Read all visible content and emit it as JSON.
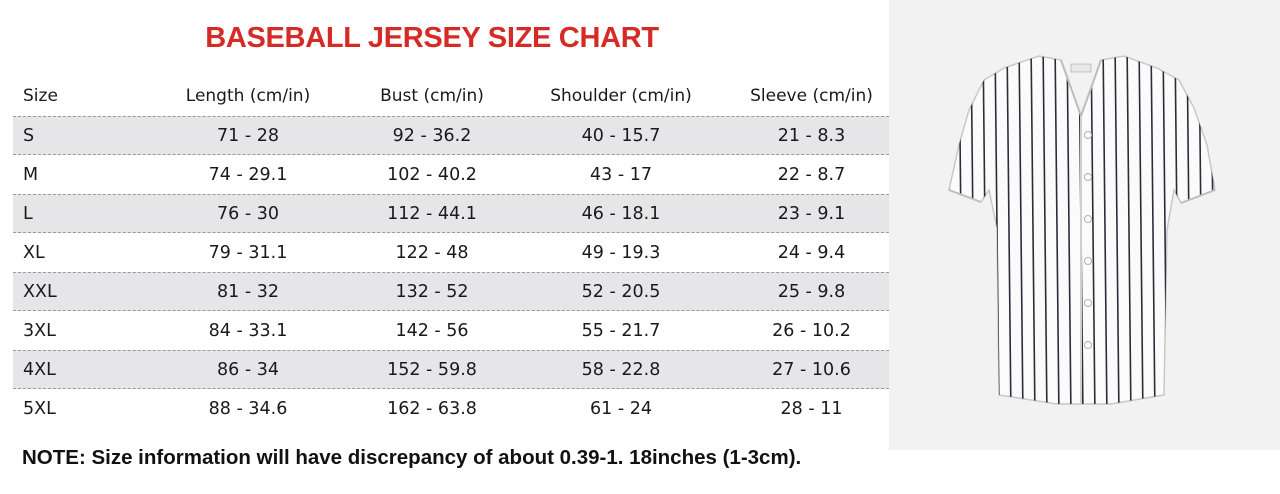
{
  "title": "BASEBALL JERSEY SIZE CHART",
  "columns": {
    "size": "Size",
    "length": "Length (cm/in)",
    "bust": "Bust (cm/in)",
    "shoulder": "Shoulder (cm/in)",
    "sleeve": "Sleeve (cm/in)"
  },
  "rows": [
    {
      "size": "S",
      "length": "71  - 28",
      "bust": "92  - 36.2",
      "shoulder": "40 - 15.7",
      "sleeve": "21  - 8.3"
    },
    {
      "size": "M",
      "length": "74 - 29.1",
      "bust": "102 - 40.2",
      "shoulder": "43 - 17",
      "sleeve": "22 - 8.7"
    },
    {
      "size": "L",
      "length": "76 - 30",
      "bust": "112  - 44.1",
      "shoulder": "46 - 18.1",
      "sleeve": "23 - 9.1"
    },
    {
      "size": "XL",
      "length": "79 - 31.1",
      "bust": "122 - 48",
      "shoulder": "49 - 19.3",
      "sleeve": "24 - 9.4"
    },
    {
      "size": "XXL",
      "length": "81  - 32",
      "bust": "132 - 52",
      "shoulder": "52 - 20.5",
      "sleeve": "25 - 9.8"
    },
    {
      "size": "3XL",
      "length": "84 - 33.1",
      "bust": "142 - 56",
      "shoulder": "55 - 21.7",
      "sleeve": "26 - 10.2"
    },
    {
      "size": "4XL",
      "length": "86 - 34",
      "bust": "152 - 59.8",
      "shoulder": "58 - 22.8",
      "sleeve": "27 - 10.6"
    },
    {
      "size": "5XL",
      "length": "88 - 34.6",
      "bust": "162 - 63.8",
      "shoulder": "61  - 24",
      "sleeve": "28 - 11"
    }
  ],
  "note": "NOTE: Size information will have discrepancy of about 0.39-1. 18inches (1-3cm).",
  "product_image": "white-pinstripe-baseball-jersey",
  "colors": {
    "title": "#d52b27",
    "shaded_row": "#e6e6e8",
    "photo_background": "#f2f2f2"
  }
}
